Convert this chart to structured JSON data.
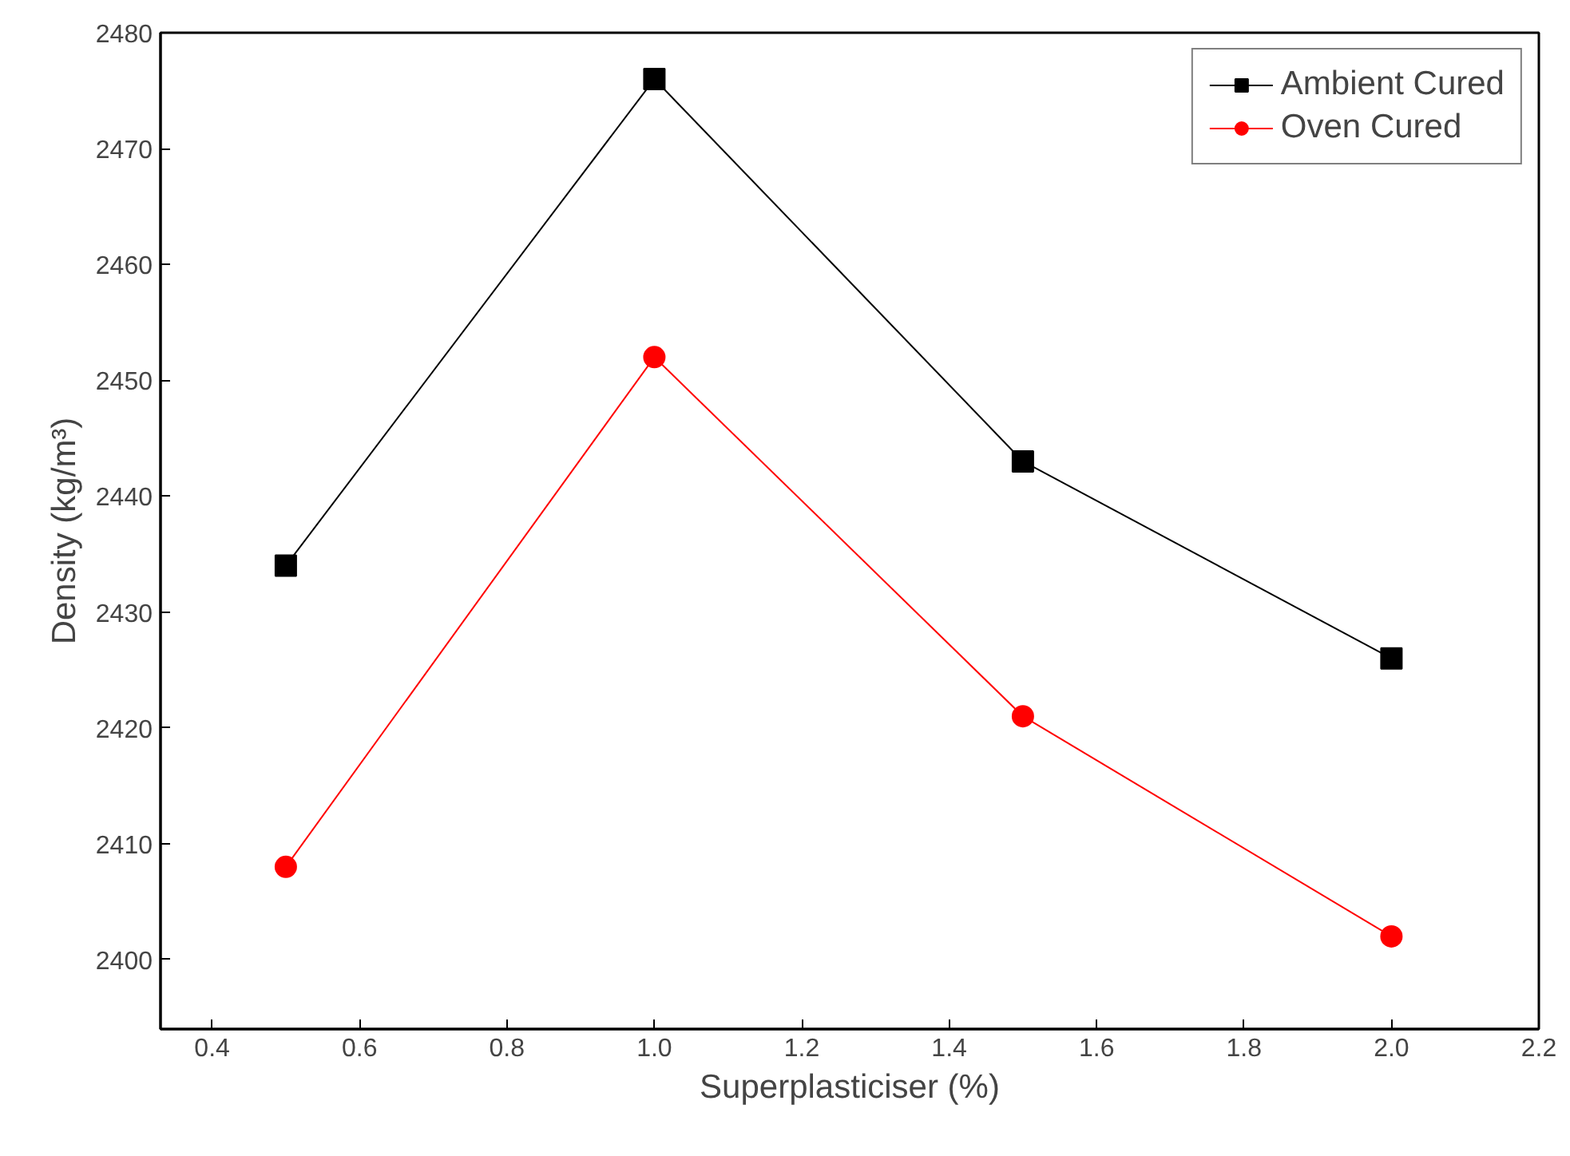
{
  "chart_data": {
    "type": "line",
    "xlabel": "Superplasticiser (%)",
    "ylabel": "Density (kg/m³)",
    "x": [
      0.5,
      1.0,
      1.5,
      2.0
    ],
    "series": [
      {
        "name": "Ambient Cured",
        "color": "#000000",
        "marker": "square",
        "values": [
          2434,
          2476,
          2443,
          2426
        ]
      },
      {
        "name": "Oven Cured",
        "color": "#ff0000",
        "marker": "circle",
        "values": [
          2408,
          2452,
          2421,
          2402
        ]
      }
    ],
    "xlim": [
      0.33,
      2.2
    ],
    "xticks": [
      {
        "value": 0.4,
        "label": "0.4"
      },
      {
        "value": 0.6,
        "label": "0.6"
      },
      {
        "value": 0.8,
        "label": "0.8"
      },
      {
        "value": 1.0,
        "label": "1.0"
      },
      {
        "value": 1.2,
        "label": "1.2"
      },
      {
        "value": 1.4,
        "label": "1.4"
      },
      {
        "value": 1.6,
        "label": "1.6"
      },
      {
        "value": 1.8,
        "label": "1.8"
      },
      {
        "value": 2.0,
        "label": "2.0"
      },
      {
        "value": 2.2,
        "label": "2.2"
      }
    ],
    "ylim": [
      2394,
      2480
    ],
    "yticks": [
      2400,
      2410,
      2420,
      2430,
      2440,
      2450,
      2460,
      2470,
      2480
    ],
    "grid": false,
    "legend": "top right",
    "line_style": "solid"
  }
}
